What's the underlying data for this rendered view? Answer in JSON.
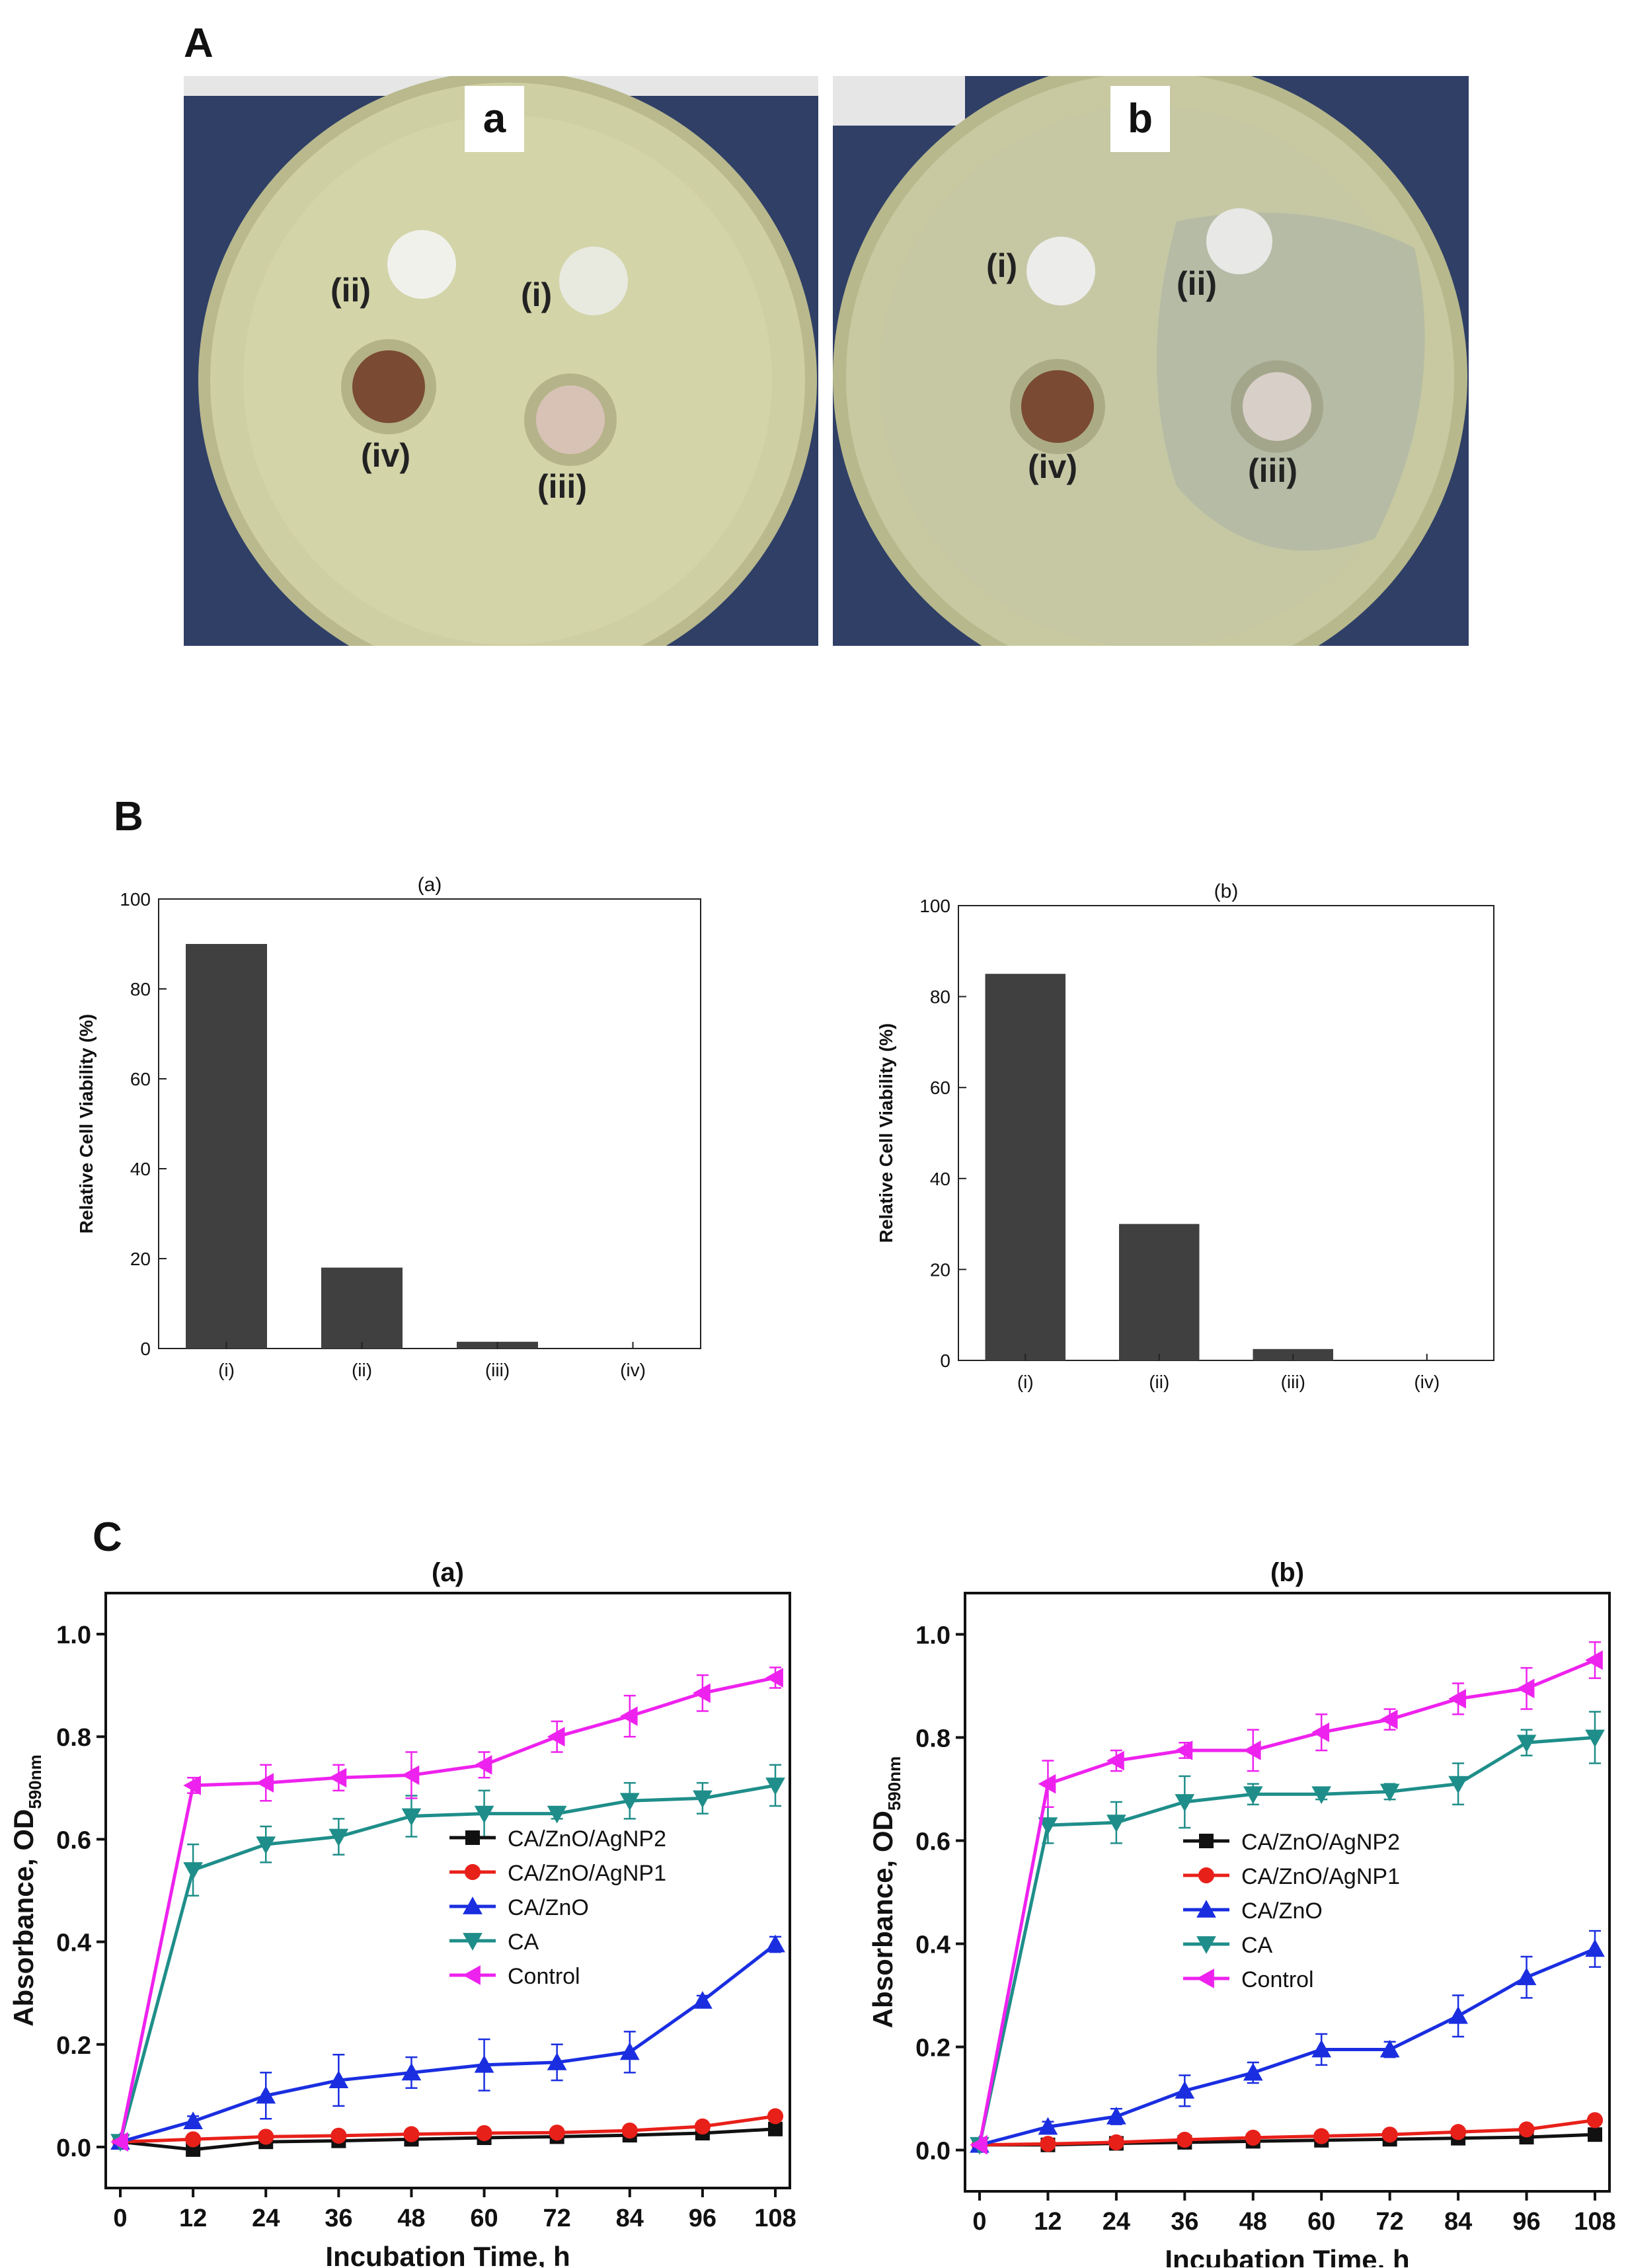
{
  "panels": {
    "A": "A",
    "B": "B",
    "C": "C"
  },
  "photos": [
    {
      "badge": "a",
      "labels": [
        "(ii)",
        "(i)",
        "(iv)",
        "(iii)"
      ]
    },
    {
      "badge": "b",
      "labels": [
        "(i)",
        "(ii)",
        "(iv)",
        "(iii)"
      ]
    }
  ],
  "colors": {
    "bar": "#404040",
    "black": "#111111",
    "red": "#e8201a",
    "blue": "#1a2ee0",
    "teal": "#1f8e8a",
    "magenta": "#ee22ee"
  },
  "chart_data": [
    {
      "type": "bar",
      "panel": "B",
      "title": "(a)",
      "ylabel": "Relative Cell Viability (%)",
      "xlabel": "",
      "categories": [
        "(i)",
        "(ii)",
        "(iii)",
        "(iv)"
      ],
      "values": [
        90,
        18,
        1.5,
        0
      ],
      "ylim": [
        0,
        100
      ],
      "yticks": [
        "0",
        "20",
        "40",
        "60",
        "80",
        "100"
      ]
    },
    {
      "type": "bar",
      "panel": "B",
      "title": "(b)",
      "ylabel": "Relative Cell Viability (%)",
      "xlabel": "",
      "categories": [
        "(i)",
        "(ii)",
        "(iii)",
        "(iv)"
      ],
      "values": [
        85,
        30,
        2.5,
        0
      ],
      "ylim": [
        0,
        100
      ],
      "yticks": [
        "0",
        "20",
        "40",
        "60",
        "80",
        "100"
      ]
    },
    {
      "type": "line",
      "panel": "C",
      "title": "(a)",
      "xlabel": "Incubation Time, h",
      "ylabel_main": "Absorbance, OD",
      "ylabel_sub": "590nm",
      "x": [
        0,
        12,
        24,
        36,
        48,
        60,
        72,
        84,
        96,
        108
      ],
      "xticks": [
        "0",
        "12",
        "24",
        "36",
        "48",
        "60",
        "72",
        "84",
        "96",
        "108"
      ],
      "ylim": [
        -0.08,
        1.08
      ],
      "yticks": [
        "0.0",
        "0.2",
        "0.4",
        "0.6",
        "0.8",
        "1.0"
      ],
      "legend": "center-right",
      "series": [
        {
          "name": "CA/ZnO/AgNP2",
          "color": "#111111",
          "marker": "square",
          "values": [
            0.01,
            -0.005,
            0.01,
            0.012,
            0.015,
            0.018,
            0.02,
            0.023,
            0.027,
            0.035
          ],
          "err": [
            0,
            0.004,
            0.004,
            0.004,
            0.004,
            0.004,
            0.004,
            0.004,
            0.005,
            0.006
          ]
        },
        {
          "name": "CA/ZnO/AgNP1",
          "color": "#e8201a",
          "marker": "circle",
          "values": [
            0.01,
            0.015,
            0.02,
            0.022,
            0.025,
            0.027,
            0.028,
            0.032,
            0.04,
            0.06
          ],
          "err": [
            0,
            0.004,
            0.004,
            0.004,
            0.004,
            0.004,
            0.004,
            0.005,
            0.006,
            0.008
          ]
        },
        {
          "name": "CA/ZnO",
          "color": "#1a2ee0",
          "marker": "triangle-up",
          "values": [
            0.01,
            0.05,
            0.1,
            0.13,
            0.145,
            0.16,
            0.165,
            0.185,
            0.285,
            0.395
          ],
          "err": [
            0,
            0.01,
            0.045,
            0.05,
            0.03,
            0.05,
            0.035,
            0.04,
            0.01,
            0.015
          ]
        },
        {
          "name": "CA",
          "color": "#1f8e8a",
          "marker": "triangle-down",
          "values": [
            0.01,
            0.54,
            0.59,
            0.605,
            0.645,
            0.65,
            0.65,
            0.675,
            0.68,
            0.705
          ],
          "err": [
            0,
            0.05,
            0.035,
            0.035,
            0.04,
            0.045,
            0.01,
            0.035,
            0.03,
            0.04
          ]
        },
        {
          "name": "Control",
          "color": "#ee22ee",
          "marker": "triangle-left",
          "values": [
            0.01,
            0.705,
            0.71,
            0.72,
            0.725,
            0.745,
            0.8,
            0.84,
            0.885,
            0.915
          ],
          "err": [
            0,
            0.015,
            0.035,
            0.025,
            0.045,
            0.025,
            0.03,
            0.04,
            0.035,
            0.02
          ]
        }
      ]
    },
    {
      "type": "line",
      "panel": "C",
      "title": "(b)",
      "xlabel": "Incubation Time, h",
      "ylabel_main": "Absorbance, OD",
      "ylabel_sub": "590nm",
      "x": [
        0,
        12,
        24,
        36,
        48,
        60,
        72,
        84,
        96,
        108
      ],
      "xticks": [
        "0",
        "12",
        "24",
        "36",
        "48",
        "60",
        "72",
        "84",
        "96",
        "108"
      ],
      "ylim": [
        -0.08,
        1.08
      ],
      "yticks": [
        "0.0",
        "0.2",
        "0.4",
        "0.6",
        "0.8",
        "1.0"
      ],
      "legend": "center-right",
      "series": [
        {
          "name": "CA/ZnO/AgNP2",
          "color": "#111111",
          "marker": "square",
          "values": [
            0.01,
            0.01,
            0.013,
            0.015,
            0.017,
            0.019,
            0.021,
            0.023,
            0.025,
            0.03
          ],
          "err": [
            0,
            0.004,
            0.004,
            0.004,
            0.004,
            0.004,
            0.004,
            0.004,
            0.005,
            0.006
          ]
        },
        {
          "name": "CA/ZnO/AgNP1",
          "color": "#e8201a",
          "marker": "circle",
          "values": [
            0.01,
            0.012,
            0.015,
            0.02,
            0.024,
            0.027,
            0.03,
            0.035,
            0.04,
            0.058
          ],
          "err": [
            0,
            0.004,
            0.004,
            0.004,
            0.004,
            0.004,
            0.004,
            0.005,
            0.006,
            0.008
          ]
        },
        {
          "name": "CA/ZnO",
          "color": "#1a2ee0",
          "marker": "triangle-up",
          "values": [
            0.01,
            0.045,
            0.065,
            0.115,
            0.15,
            0.195,
            0.195,
            0.26,
            0.335,
            0.39
          ],
          "err": [
            0,
            0.01,
            0.015,
            0.03,
            0.02,
            0.03,
            0.015,
            0.04,
            0.04,
            0.035
          ]
        },
        {
          "name": "CA",
          "color": "#1f8e8a",
          "marker": "triangle-down",
          "values": [
            0.01,
            0.63,
            0.635,
            0.675,
            0.69,
            0.69,
            0.695,
            0.71,
            0.79,
            0.8
          ],
          "err": [
            0,
            0.035,
            0.04,
            0.05,
            0.02,
            0.01,
            0.015,
            0.04,
            0.025,
            0.05
          ]
        },
        {
          "name": "Control",
          "color": "#ee22ee",
          "marker": "triangle-left",
          "values": [
            0.01,
            0.71,
            0.755,
            0.775,
            0.775,
            0.81,
            0.835,
            0.875,
            0.895,
            0.95
          ],
          "err": [
            0,
            0.045,
            0.02,
            0.015,
            0.04,
            0.035,
            0.02,
            0.03,
            0.04,
            0.035
          ]
        }
      ]
    }
  ]
}
